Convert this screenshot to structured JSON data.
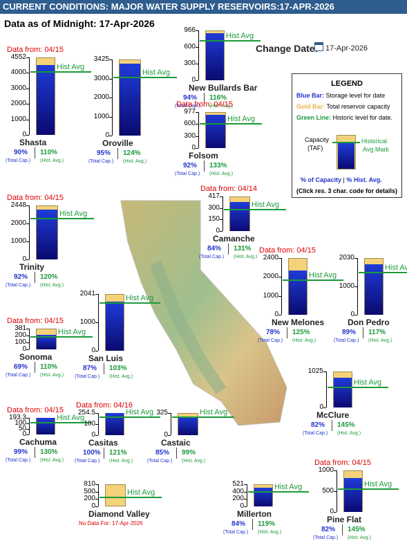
{
  "header": {
    "title": "CURRENT CONDITIONS: MAJOR WATER SUPPLY RESERVOIRS:17-APR-2026"
  },
  "as_of": "Data as of Midnight: 17-Apr-2026",
  "change_date": {
    "label": "Change Date:",
    "value": "17-Apr-2026"
  },
  "hist_label": "Hist Avg",
  "cap_label": "(Total Cap.)",
  "hist_small": "(Hist. Avg.)",
  "legend": {
    "title": "LEGEND",
    "blue": "Blue Bar:",
    "blue_desc": " Storage level for date",
    "gold": "Gold Bar:",
    "gold_desc": " Total reservoir capacity",
    "green": "Green Line:",
    "green_desc": " Historic level for date.",
    "capacity": "Capacity",
    "taf": "(TAF)",
    "historical": "Historical",
    "avg_mark": "Avg Mark",
    "pct_cap": "% of Capacity",
    "sep": "|",
    "pct_hist": "% Hist. Avg.",
    "click": "(Click res. 3 char. code for details)"
  },
  "reservoirs": [
    {
      "name": "Shasta",
      "data_from": "Data from: 04/15",
      "ticks": [
        "4552",
        "4000",
        "3000",
        "2000",
        "1000",
        "0"
      ],
      "pcap": "90%",
      "phist": "110%"
    },
    {
      "name": "Oroville",
      "data_from": "",
      "ticks": [
        "3425",
        "3000",
        "2000",
        "1000",
        "0"
      ],
      "pcap": "95%",
      "phist": "124%"
    },
    {
      "name": "New Bullards Bar",
      "data_from": "",
      "ticks": [
        "966",
        "600",
        "300",
        "0"
      ],
      "pcap": "94%",
      "phist": "116%"
    },
    {
      "name": "Folsom",
      "data_from": "Data from: 04/15",
      "ticks": [
        "977",
        "600",
        "300",
        "0"
      ],
      "pcap": "92%",
      "phist": "133%"
    },
    {
      "name": "Trinity",
      "data_from": "Data from: 04/15",
      "ticks": [
        "2448",
        "2000",
        "1000",
        "0"
      ],
      "pcap": "92%",
      "phist": "120%"
    },
    {
      "name": "Camanche",
      "data_from": "Data from: 04/14",
      "ticks": [
        "417",
        "300",
        "150",
        "0"
      ],
      "pcap": "84%",
      "phist": "131%"
    },
    {
      "name": "New Melones",
      "data_from": "Data from: 04/15",
      "ticks": [
        "2400",
        "2000",
        "1000",
        "0"
      ],
      "pcap": "78%",
      "phist": "125%"
    },
    {
      "name": "Don Pedro",
      "data_from": "",
      "ticks": [
        "2030",
        "1000",
        "0"
      ],
      "pcap": "89%",
      "phist": "117%"
    },
    {
      "name": "San Luis",
      "data_from": "",
      "ticks": [
        "2041",
        "1000",
        "0"
      ],
      "pcap": "87%",
      "phist": "103%"
    },
    {
      "name": "Sonoma",
      "data_from": "Data from: 04/15",
      "ticks": [
        "381",
        "200",
        "100",
        "0"
      ],
      "pcap": "69%",
      "phist": "110%"
    },
    {
      "name": "McClure",
      "data_from": "",
      "ticks": [
        "1025",
        "0"
      ],
      "pcap": "82%",
      "phist": "145%"
    },
    {
      "name": "Cachuma",
      "data_from": "Data from: 04/15",
      "ticks": [
        "193.3",
        "100",
        "50",
        "0"
      ],
      "pcap": "99%",
      "phist": "130%"
    },
    {
      "name": "Casitas",
      "data_from": "Data from: 04/16",
      "ticks": [
        "254.5",
        "100",
        "0"
      ],
      "pcap": "100%",
      "phist": "121%"
    },
    {
      "name": "Castaic",
      "data_from": "",
      "ticks": [
        "325",
        "0"
      ],
      "pcap": "85%",
      "phist": "99%"
    },
    {
      "name": "Diamond Valley",
      "data_from": "",
      "ticks": [
        "810",
        "500",
        "200",
        "0"
      ],
      "nodata": "No Data For: 17-Apr-2026"
    },
    {
      "name": "Millerton",
      "data_from": "",
      "ticks": [
        "521",
        "400",
        "200",
        "0"
      ],
      "pcap": "84%",
      "phist": "119%"
    },
    {
      "name": "Pine Flat",
      "data_from": "Data from: 04/15",
      "ticks": [
        "1000",
        "500",
        "0"
      ],
      "pcap": "82%",
      "phist": "145%"
    }
  ]
}
